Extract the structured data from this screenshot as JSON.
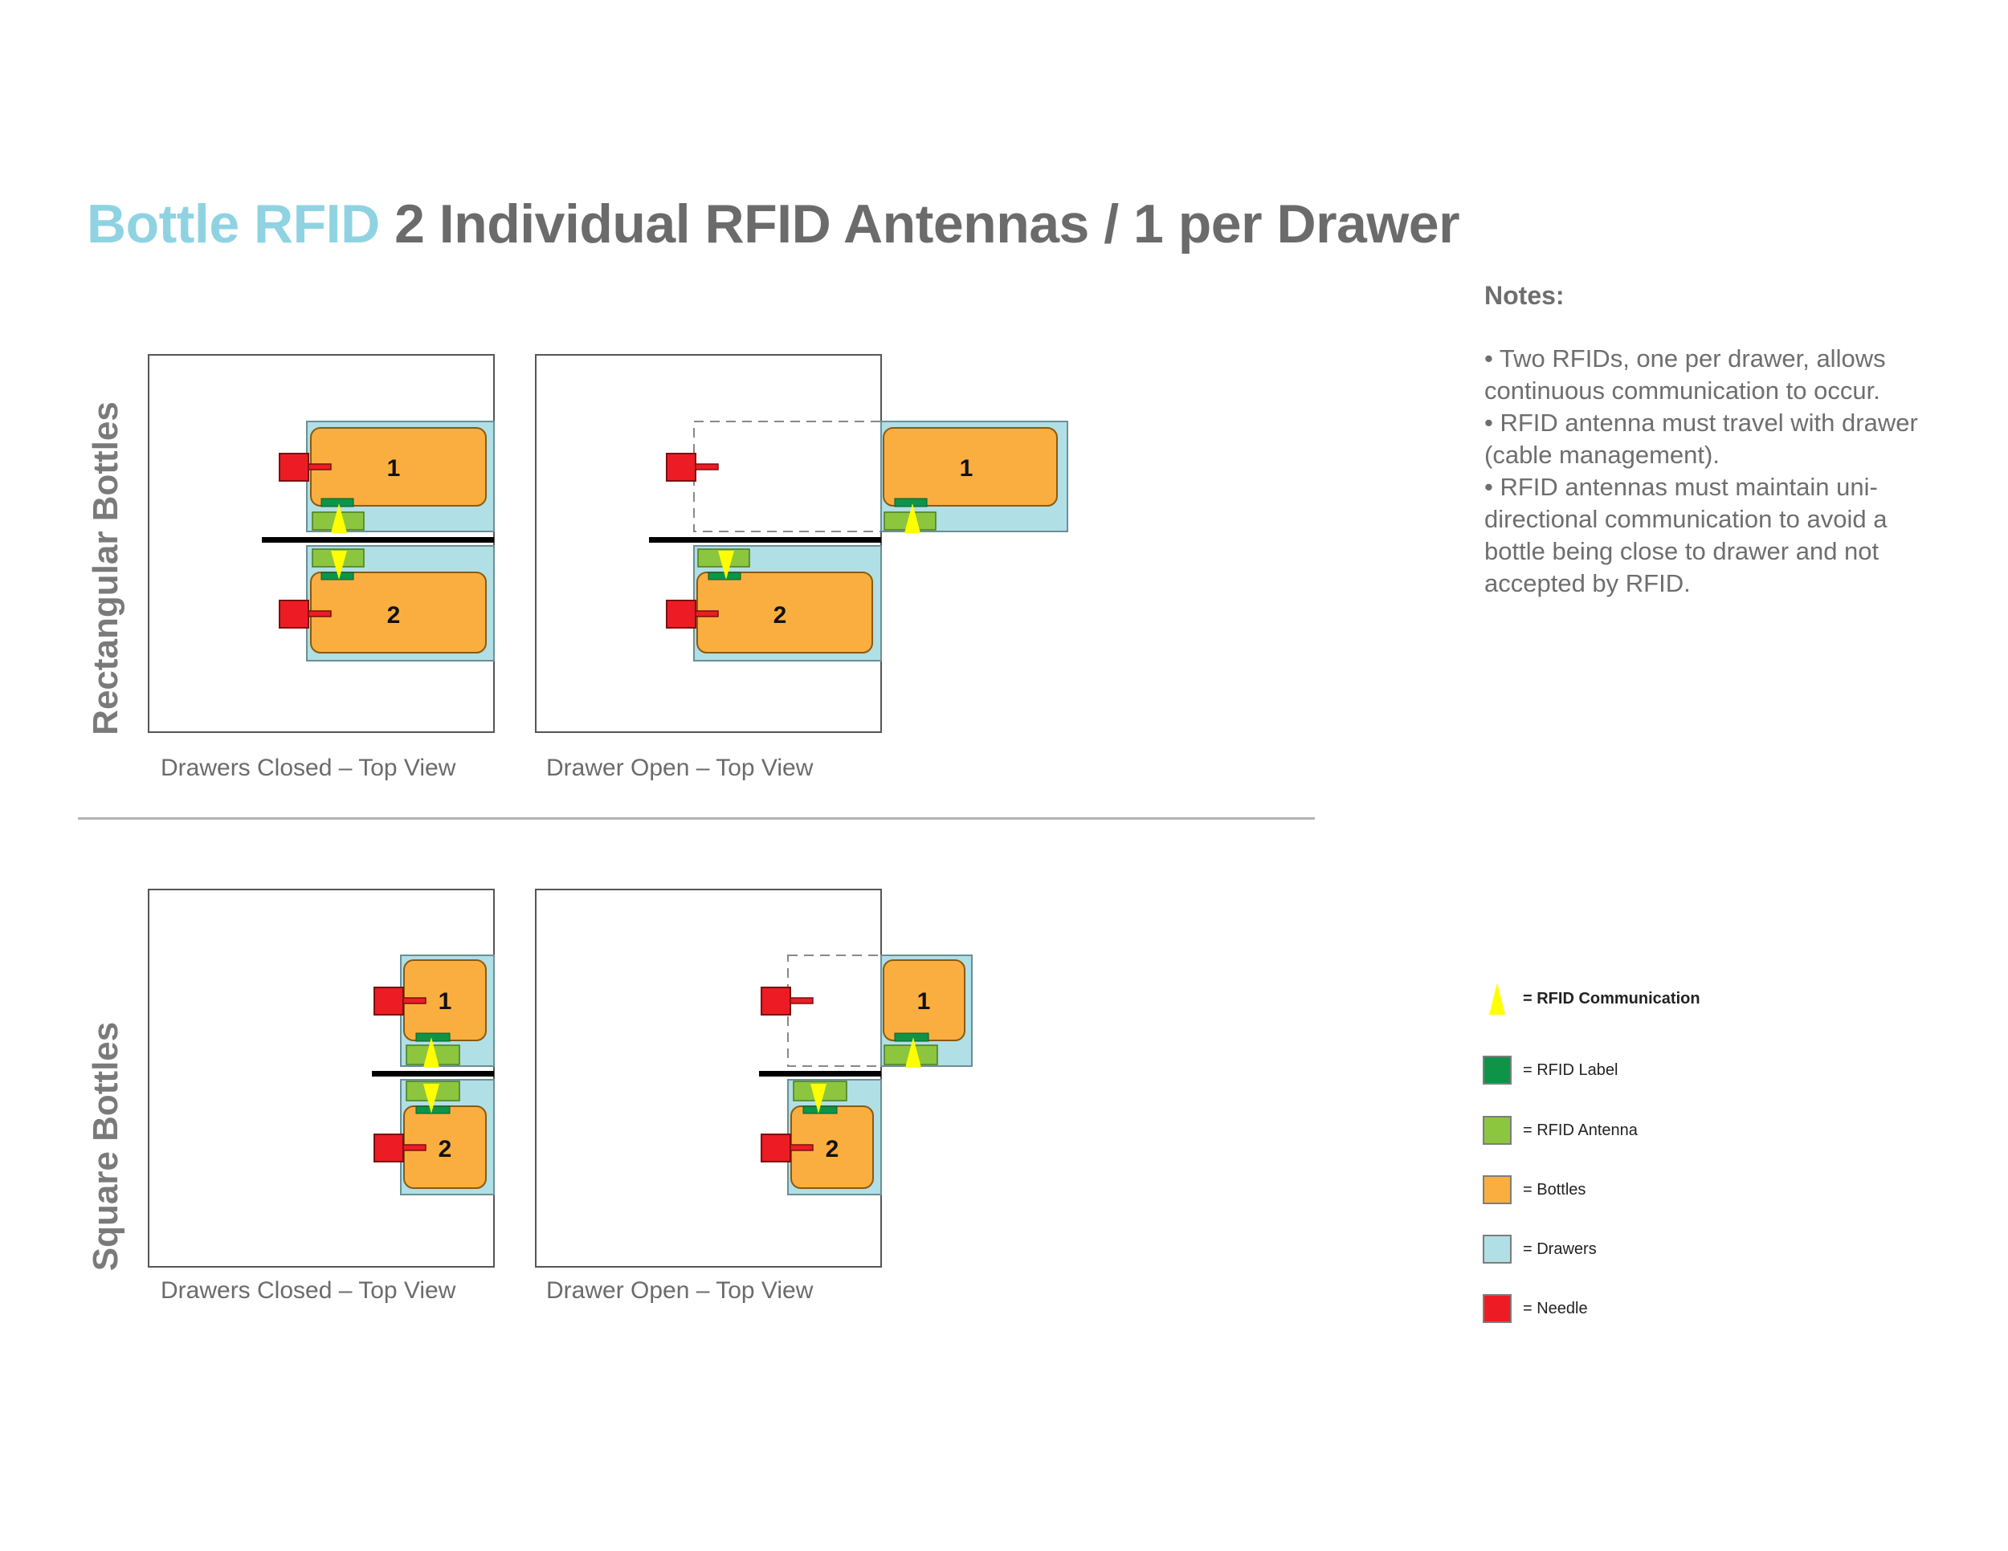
{
  "title": {
    "accent": "Bottle RFID",
    "rest": " 2 Individual RFID Antennas / 1 per Drawer"
  },
  "rows": [
    {
      "label": "Rectangular Bottles",
      "captions": [
        "Drawers Closed – Top View",
        "Drawer Open – Top View"
      ]
    },
    {
      "label": "Square Bottles",
      "captions": [
        "Drawers Closed – Top View",
        "Drawer Open – Top View"
      ]
    }
  ],
  "bottle_numbers": [
    "1",
    "2"
  ],
  "notes": {
    "title": "Notes:",
    "items": [
      "•  Two RFIDs, one per drawer, allows continuous communication to occur.",
      "•  RFID antenna must travel with drawer (cable management).",
      "•  RFID antennas must maintain uni-directional communication to avoid a bottle being close to drawer and not accepted by RFID."
    ]
  },
  "legend": [
    {
      "label": "= RFID Communication",
      "icon": "yellow-arrow-icon",
      "color": "#ffff00"
    },
    {
      "label": "= RFID Label",
      "icon": "swatch",
      "color": "#0e9447"
    },
    {
      "label": "= RFID Antenna",
      "icon": "swatch",
      "color": "#8cc63f"
    },
    {
      "label": "= Bottles",
      "icon": "swatch",
      "color": "#fbae40"
    },
    {
      "label": "= Drawers",
      "icon": "swatch",
      "color": "#b0dfe5"
    },
    {
      "label": "= Needle",
      "icon": "swatch",
      "color": "#ed1c24"
    }
  ],
  "colors": {
    "title_accent": "#8fd3e2",
    "title_text": "#6b6b6b",
    "drawer": "#b0dfe5",
    "bottle": "#fbae40",
    "antenna": "#8cc63f",
    "label": "#0e9447",
    "needle": "#ed1c24",
    "communication": "#ffff00"
  }
}
